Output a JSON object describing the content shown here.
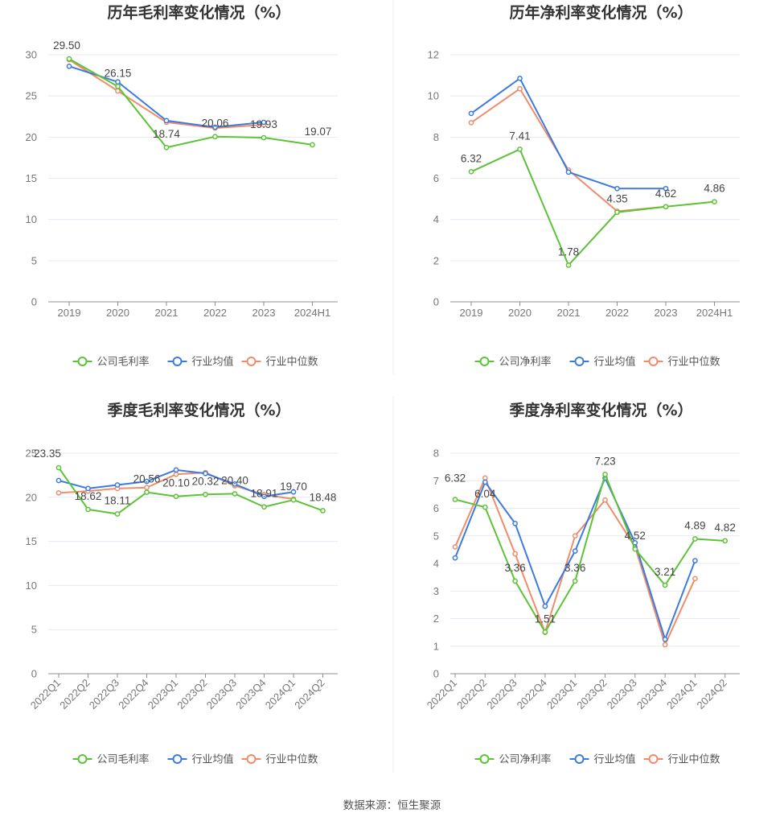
{
  "footer": "数据来源：恒生聚源",
  "chart_data": [
    {
      "type": "line",
      "title": "历年毛利率变化情况（%）",
      "categories": [
        "2019",
        "2020",
        "2021",
        "2022",
        "2023",
        "2024H1"
      ],
      "ylim": [
        0,
        30
      ],
      "yticks": [
        0,
        5,
        10,
        15,
        20,
        25,
        30
      ],
      "x_label_rotated": false,
      "legend_position": "bottom-center",
      "series": [
        {
          "name": "公司毛利率",
          "color": "#5cc337",
          "values": [
            29.5,
            26.15,
            18.74,
            20.06,
            19.93,
            19.07
          ],
          "labels": [
            "29.50",
            "26.15",
            "18.74",
            "20.06",
            "19.93",
            "19.07"
          ]
        },
        {
          "name": "行业均值",
          "color": "#3d7ae0",
          "values": [
            28.6,
            26.7,
            22.0,
            21.2,
            21.8,
            null
          ]
        },
        {
          "name": "行业中位数",
          "color": "#f08c6a",
          "values": [
            29.4,
            25.6,
            21.8,
            21.1,
            21.5,
            null
          ]
        }
      ]
    },
    {
      "type": "line",
      "title": "历年净利率变化情况（%）",
      "categories": [
        "2019",
        "2020",
        "2021",
        "2022",
        "2023",
        "2024H1"
      ],
      "ylim": [
        0,
        12
      ],
      "yticks": [
        0,
        2,
        4,
        6,
        8,
        10,
        12
      ],
      "x_label_rotated": false,
      "legend_position": "bottom-center",
      "series": [
        {
          "name": "公司净利率",
          "color": "#5cc337",
          "values": [
            6.32,
            7.41,
            1.78,
            4.35,
            4.62,
            4.86
          ],
          "labels": [
            "6.32",
            "7.41",
            "1.78",
            "4.35",
            "4.62",
            "4.86"
          ]
        },
        {
          "name": "行业均值",
          "color": "#3d7ae0",
          "values": [
            9.15,
            10.85,
            6.3,
            5.5,
            5.5,
            null
          ]
        },
        {
          "name": "行业中位数",
          "color": "#f08c6a",
          "values": [
            8.7,
            10.35,
            6.4,
            4.4,
            4.62,
            null
          ]
        }
      ]
    },
    {
      "type": "line",
      "title": "季度毛利率变化情况（%）",
      "categories": [
        "2022Q1",
        "2022Q2",
        "2022Q3",
        "2022Q4",
        "2023Q1",
        "2023Q2",
        "2023Q3",
        "2023Q4",
        "2024Q1",
        "2024Q2"
      ],
      "ylim": [
        0,
        25
      ],
      "yticks": [
        0,
        5,
        10,
        15,
        20,
        25
      ],
      "x_label_rotated": true,
      "legend_position": "bottom-center",
      "series": [
        {
          "name": "公司毛利率",
          "color": "#5cc337",
          "values": [
            23.35,
            18.62,
            18.11,
            20.56,
            20.1,
            20.32,
            20.4,
            18.91,
            19.7,
            18.48
          ],
          "labels": [
            "23.35",
            "18.62",
            "18.11",
            "20.56",
            "20.10",
            "20.32",
            "20.40",
            "18.91",
            "19.70",
            "18.48"
          ]
        },
        {
          "name": "行业均值",
          "color": "#3d7ae0",
          "values": [
            21.9,
            21.0,
            21.4,
            21.8,
            23.1,
            22.7,
            21.5,
            20.1,
            20.6,
            null
          ]
        },
        {
          "name": "行业中位数",
          "color": "#f08c6a",
          "values": [
            20.5,
            20.7,
            21.0,
            21.1,
            22.6,
            22.8,
            21.3,
            20.3,
            19.8,
            null
          ]
        }
      ]
    },
    {
      "type": "line",
      "title": "季度净利率变化情况（%）",
      "categories": [
        "2022Q1",
        "2022Q2",
        "2022Q3",
        "2022Q4",
        "2023Q1",
        "2023Q2",
        "2023Q3",
        "2023Q4",
        "2024Q1",
        "2024Q2"
      ],
      "ylim": [
        0,
        8
      ],
      "yticks": [
        0,
        1,
        2,
        3,
        4,
        5,
        6,
        7,
        8
      ],
      "x_label_rotated": true,
      "legend_position": "bottom-center",
      "series": [
        {
          "name": "公司净利率",
          "color": "#5cc337",
          "values": [
            6.32,
            6.04,
            3.36,
            1.51,
            3.36,
            7.23,
            4.52,
            3.21,
            4.89,
            4.82
          ],
          "labels": [
            "6.32",
            "6.04",
            "3.36",
            "1.51",
            "3.36",
            "7.23",
            "4.52",
            "3.21",
            "4.89",
            "4.82"
          ]
        },
        {
          "name": "行业均值",
          "color": "#3d7ae0",
          "values": [
            4.2,
            6.95,
            5.45,
            2.45,
            4.45,
            7.1,
            4.75,
            1.25,
            4.1,
            null
          ]
        },
        {
          "name": "行业中位数",
          "color": "#f08c6a",
          "values": [
            4.6,
            7.1,
            4.35,
            1.5,
            5.0,
            6.3,
            4.6,
            1.05,
            3.45,
            null
          ]
        }
      ]
    }
  ]
}
